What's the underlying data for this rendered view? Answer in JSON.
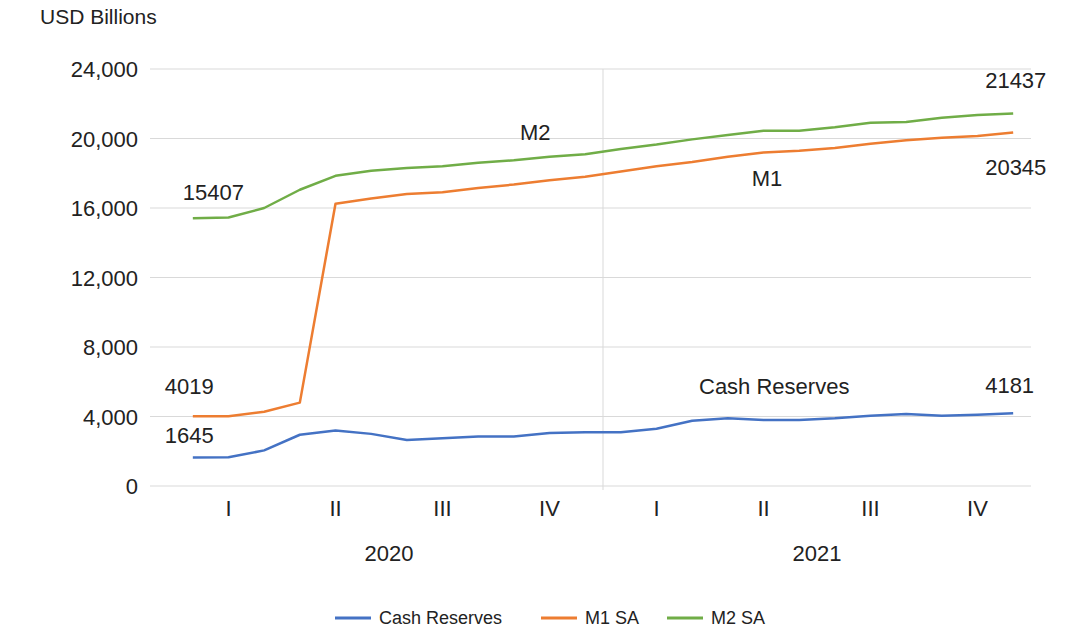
{
  "chart_data": {
    "type": "line",
    "y_label": "USD Billions",
    "categories": [
      null,
      "I",
      null,
      null,
      "II",
      null,
      null,
      "III",
      null,
      null,
      "IV",
      null,
      null,
      "I",
      null,
      null,
      "II",
      null,
      null,
      "III",
      null,
      null,
      "IV",
      null
    ],
    "category_groups": [
      {
        "label": "2020",
        "count": 12
      },
      {
        "label": "2021",
        "count": 12
      }
    ],
    "ylim": [
      0,
      24000
    ],
    "yticks": [
      0,
      {
        "value": 4000,
        "label": "4,000"
      },
      {
        "value": 8000,
        "label": "8,000"
      },
      {
        "value": 12000,
        "label": "12,000"
      },
      {
        "value": 16000,
        "label": "16,000"
      },
      {
        "value": 20000,
        "label": "20,000"
      },
      {
        "value": 24000,
        "label": "24,000"
      }
    ],
    "grid": true,
    "legend": "bottom",
    "series": [
      {
        "name": "Cash Reserves",
        "label": "Cash Reserves",
        "color": "#4472c4",
        "values": [
          1645,
          1650,
          2050,
          2950,
          3200,
          3000,
          2650,
          2750,
          2850,
          2850,
          3050,
          3100,
          3100,
          3300,
          3750,
          3900,
          3800,
          3800,
          3900,
          4050,
          4150,
          4050,
          4100,
          4181
        ],
        "value_labels": [
          "1645",
          null,
          null,
          null,
          null,
          null,
          null,
          null,
          null,
          null,
          null,
          null,
          null,
          null,
          null,
          null,
          null,
          null,
          null,
          null,
          null,
          null,
          null,
          "4181"
        ]
      },
      {
        "name": "M1 SA",
        "label": "M1",
        "color": "#ed7d31",
        "values": [
          4019,
          4020,
          4270,
          4800,
          16250,
          16550,
          16800,
          16900,
          17150,
          17350,
          17600,
          17800,
          18100,
          18400,
          18650,
          18950,
          19200,
          19300,
          19450,
          19700,
          19900,
          20050,
          20150,
          20345
        ],
        "value_labels": [
          "4019",
          null,
          null,
          null,
          null,
          null,
          null,
          null,
          null,
          null,
          null,
          null,
          null,
          null,
          null,
          null,
          null,
          null,
          null,
          null,
          null,
          null,
          null,
          "20345"
        ]
      },
      {
        "name": "M2 SA",
        "label": "M2",
        "color": "#70ad47",
        "values": [
          15407,
          15450,
          16000,
          17050,
          17850,
          18150,
          18300,
          18400,
          18600,
          18750,
          18950,
          19100,
          19400,
          19650,
          19950,
          20200,
          20450,
          20450,
          20650,
          20900,
          20950,
          21200,
          21350,
          21437
        ],
        "value_labels": [
          "15407",
          null,
          null,
          null,
          null,
          null,
          null,
          null,
          null,
          null,
          null,
          null,
          null,
          null,
          null,
          null,
          null,
          null,
          null,
          null,
          null,
          null,
          null,
          "21437"
        ]
      }
    ]
  }
}
